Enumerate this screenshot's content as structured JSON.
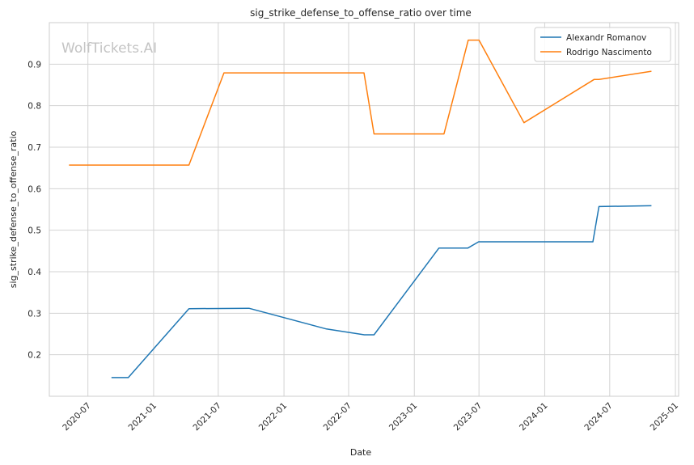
{
  "chart_data": {
    "type": "line",
    "title": "sig_strike_defense_to_offense_ratio over time",
    "xlabel": "Date",
    "ylabel": "sig_strike_defense_to_offense_ratio",
    "watermark": "WolfTickets.AI",
    "x_type": "date",
    "xlim": [
      "2020-03-15",
      "2025-01-10"
    ],
    "ylim": [
      0.1,
      1.0
    ],
    "x_ticks": [
      {
        "label": "2020-07",
        "date": "2020-07-01"
      },
      {
        "label": "2021-01",
        "date": "2021-01-01"
      },
      {
        "label": "2021-07",
        "date": "2021-07-01"
      },
      {
        "label": "2022-01",
        "date": "2022-01-01"
      },
      {
        "label": "2022-07",
        "date": "2022-07-01"
      },
      {
        "label": "2023-01",
        "date": "2023-01-01"
      },
      {
        "label": "2023-07",
        "date": "2023-07-01"
      },
      {
        "label": "2024-01",
        "date": "2024-01-01"
      },
      {
        "label": "2024-07",
        "date": "2024-07-01"
      },
      {
        "label": "2025-01",
        "date": "2025-01-01"
      }
    ],
    "y_ticks": [
      {
        "label": "0.2",
        "value": 0.2
      },
      {
        "label": "0.3",
        "value": 0.3
      },
      {
        "label": "0.4",
        "value": 0.4
      },
      {
        "label": "0.5",
        "value": 0.5
      },
      {
        "label": "0.6",
        "value": 0.6
      },
      {
        "label": "0.7",
        "value": 0.7
      },
      {
        "label": "0.8",
        "value": 0.8
      },
      {
        "label": "0.9",
        "value": 0.9
      }
    ],
    "grid": true,
    "legend_position": "top-right",
    "series": [
      {
        "name": "Alexandr Romanov",
        "color": "#1f77b4",
        "points": [
          {
            "x": "2020-09-05",
            "y": 0.145
          },
          {
            "x": "2020-10-22",
            "y": 0.145
          },
          {
            "x": "2021-04-10",
            "y": 0.311
          },
          {
            "x": "2021-09-25",
            "y": 0.312
          },
          {
            "x": "2022-04-30",
            "y": 0.262
          },
          {
            "x": "2022-08-14",
            "y": 0.248
          },
          {
            "x": "2022-09-10",
            "y": 0.248
          },
          {
            "x": "2023-03-11",
            "y": 0.457
          },
          {
            "x": "2023-05-31",
            "y": 0.457
          },
          {
            "x": "2023-06-30",
            "y": 0.472
          },
          {
            "x": "2024-05-15",
            "y": 0.472
          },
          {
            "x": "2024-06-01",
            "y": 0.557
          },
          {
            "x": "2024-10-26",
            "y": 0.559
          }
        ]
      },
      {
        "name": "Rodrigo Nascimento",
        "color": "#ff7f0e",
        "points": [
          {
            "x": "2020-05-09",
            "y": 0.657
          },
          {
            "x": "2021-04-10",
            "y": 0.657
          },
          {
            "x": "2021-07-17",
            "y": 0.879
          },
          {
            "x": "2022-08-13",
            "y": 0.879
          },
          {
            "x": "2022-09-10",
            "y": 0.732
          },
          {
            "x": "2023-03-25",
            "y": 0.732
          },
          {
            "x": "2023-06-01",
            "y": 0.958
          },
          {
            "x": "2023-07-01",
            "y": 0.958
          },
          {
            "x": "2023-11-04",
            "y": 0.759
          },
          {
            "x": "2024-05-18",
            "y": 0.863
          },
          {
            "x": "2024-06-01",
            "y": 0.863
          },
          {
            "x": "2024-10-26",
            "y": 0.883
          }
        ]
      }
    ]
  }
}
